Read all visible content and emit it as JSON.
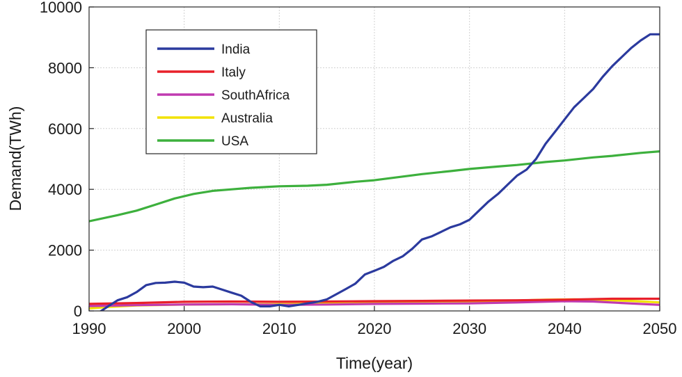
{
  "chart_data": {
    "type": "line",
    "title": "",
    "xlabel": "Time(year)",
    "ylabel": "Demand(TWh)",
    "xlim": [
      1990,
      2050
    ],
    "ylim": [
      0,
      10000
    ],
    "xticks": [
      1990,
      2000,
      2010,
      2020,
      2030,
      2040,
      2050
    ],
    "yticks": [
      0,
      2000,
      4000,
      6000,
      8000,
      10000
    ],
    "grid": true,
    "legend_position": "top-left",
    "series": [
      {
        "name": "India",
        "color": "#2b3a9e",
        "x": [
          1990,
          1991,
          1992,
          1993,
          1994,
          1995,
          1996,
          1997,
          1998,
          1999,
          2000,
          2001,
          2002,
          2003,
          2004,
          2005,
          2006,
          2007,
          2008,
          2009,
          2010,
          2011,
          2012,
          2013,
          2014,
          2015,
          2016,
          2017,
          2018,
          2019,
          2020,
          2021,
          2022,
          2023,
          2024,
          2025,
          2026,
          2027,
          2028,
          2029,
          2030,
          2031,
          2032,
          2033,
          2034,
          2035,
          2036,
          2037,
          2038,
          2039,
          2040,
          2041,
          2042,
          2043,
          2044,
          2045,
          2046,
          2047,
          2048,
          2049,
          2050
        ],
        "values": [
          -20,
          -60,
          150,
          350,
          450,
          620,
          850,
          920,
          930,
          960,
          930,
          800,
          780,
          800,
          700,
          600,
          500,
          300,
          150,
          150,
          200,
          150,
          200,
          250,
          300,
          380,
          550,
          720,
          900,
          1200,
          1320,
          1450,
          1650,
          1800,
          2050,
          2350,
          2450,
          2600,
          2750,
          2850,
          3000,
          3300,
          3600,
          3850,
          4150,
          4450,
          4650,
          5000,
          5500,
          5900,
          6300,
          6700,
          7000,
          7300,
          7700,
          8050,
          8350,
          8650,
          8900,
          9100,
          9100
        ]
      },
      {
        "name": "Italy",
        "color": "#e8202a",
        "x": [
          1990,
          1995,
          2000,
          2005,
          2010,
          2015,
          2020,
          2025,
          2030,
          2035,
          2040,
          2045,
          2050
        ],
        "values": [
          230,
          260,
          300,
          310,
          300,
          310,
          320,
          330,
          340,
          350,
          370,
          400,
          400
        ]
      },
      {
        "name": "SouthAfrica",
        "color": "#c03ab0",
        "x": [
          1990,
          1995,
          2000,
          2005,
          2010,
          2015,
          2020,
          2025,
          2030,
          2035,
          2040,
          2043,
          2046,
          2050
        ],
        "values": [
          160,
          190,
          210,
          220,
          200,
          210,
          230,
          240,
          250,
          280,
          320,
          310,
          260,
          200
        ]
      },
      {
        "name": "Australia",
        "color": "#f2e200",
        "x": [
          1990,
          1992,
          1995,
          2000,
          2005,
          2010,
          2015,
          2020,
          2025,
          2030,
          2035,
          2038,
          2041,
          2044,
          2047,
          2050
        ],
        "values": [
          80,
          130,
          180,
          210,
          220,
          220,
          240,
          250,
          270,
          300,
          340,
          370,
          380,
          360,
          330,
          280
        ]
      },
      {
        "name": "USA",
        "color": "#3db03d",
        "x": [
          1990,
          1993,
          1995,
          1997,
          1999,
          2001,
          2003,
          2005,
          2007,
          2010,
          2013,
          2015,
          2018,
          2020,
          2023,
          2025,
          2028,
          2030,
          2033,
          2035,
          2038,
          2040,
          2043,
          2045,
          2048,
          2050
        ],
        "values": [
          2950,
          3150,
          3300,
          3500,
          3700,
          3850,
          3950,
          4000,
          4050,
          4100,
          4120,
          4150,
          4250,
          4300,
          4420,
          4500,
          4600,
          4670,
          4750,
          4800,
          4900,
          4950,
          5050,
          5100,
          5200,
          5250
        ]
      }
    ]
  }
}
